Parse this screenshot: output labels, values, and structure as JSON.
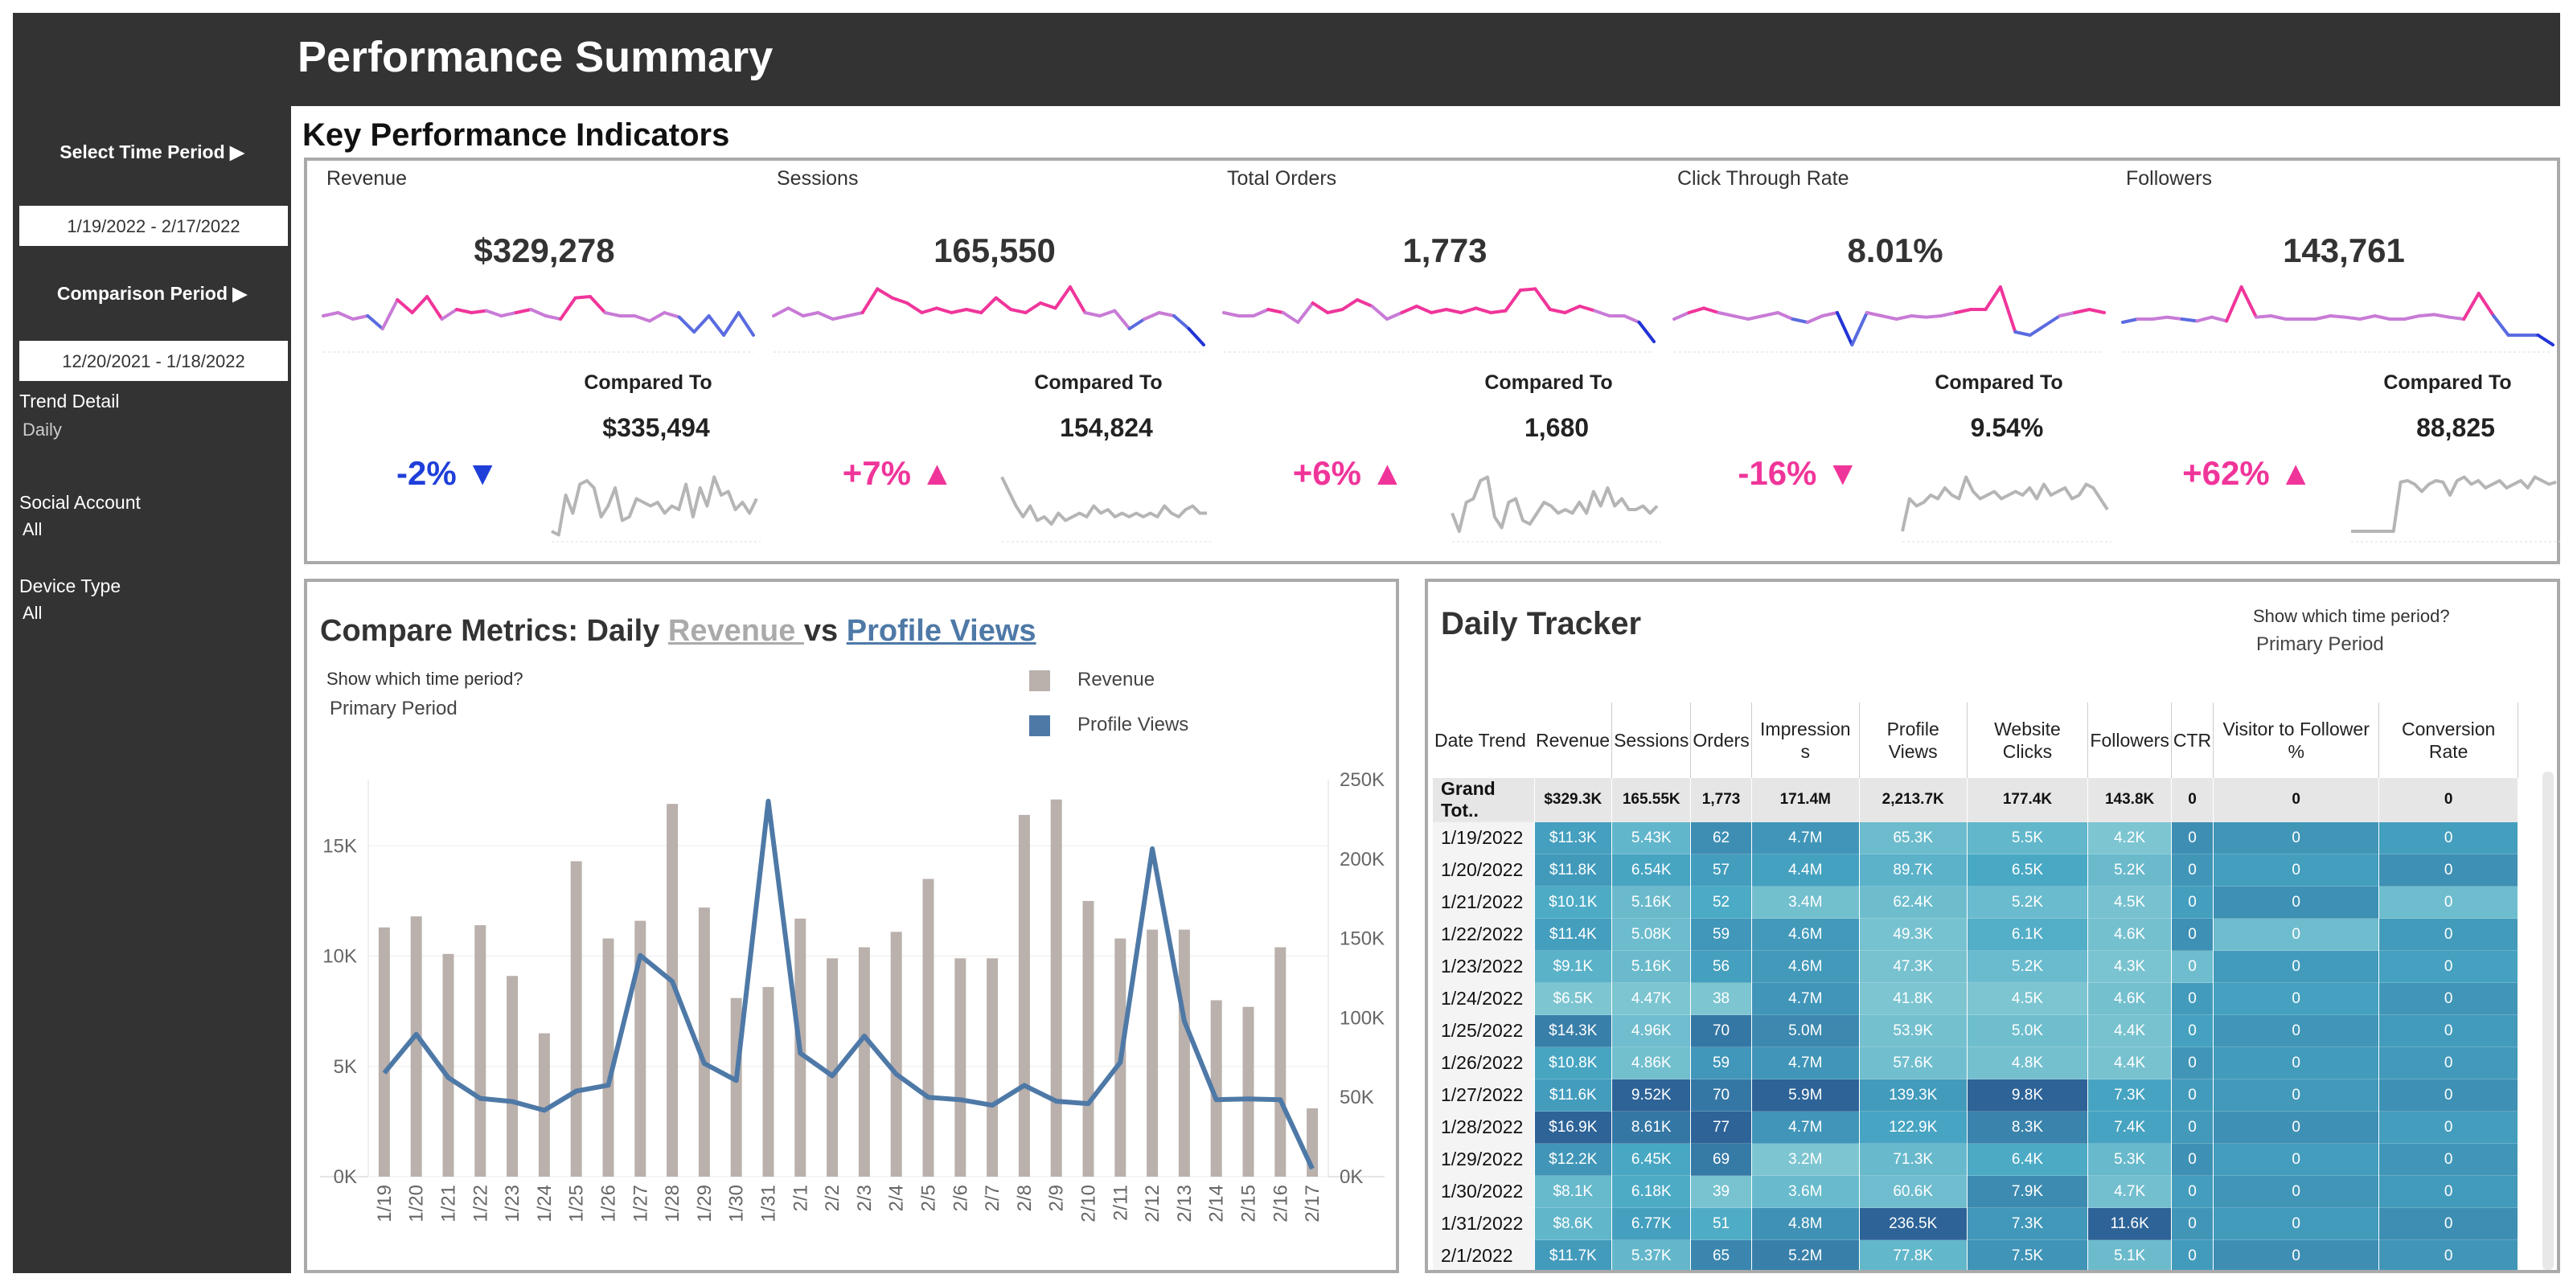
{
  "header": {
    "title": "Performance Summary"
  },
  "sidebar": {
    "time_period_btn": "Select Time Period ▶",
    "time_period_value": "1/19/2022 - 2/17/2022",
    "comparison_btn": "Comparison Period ▶",
    "comparison_value": "12/20/2021 - 1/18/2022",
    "trend_label": "Trend Detail",
    "trend_value": "Daily",
    "social_label": "Social Account",
    "social_value": "All",
    "device_label": "Device Type",
    "device_value": "All"
  },
  "kpi_section": {
    "heading": "Key Performance Indicators",
    "compared_to": "Compared To",
    "items": [
      {
        "title": "Revenue",
        "value": "$329,278",
        "compare_value": "$335,494",
        "change": "-2%",
        "direction": "down",
        "color": "#1f3fd9"
      },
      {
        "title": "Sessions",
        "value": "165,550",
        "compare_value": "154,824",
        "change": "+7%",
        "direction": "up",
        "color": "#f0359a"
      },
      {
        "title": "Total Orders",
        "value": "1,773",
        "compare_value": "1,680",
        "change": "+6%",
        "direction": "up",
        "color": "#f0359a"
      },
      {
        "title": "Click Through Rate",
        "value": "8.01%",
        "compare_value": "9.54%",
        "change": "-16%",
        "direction": "down",
        "color": "#f0359a"
      },
      {
        "title": "Followers",
        "value": "143,761",
        "compare_value": "88,825",
        "change": "+62%",
        "direction": "up",
        "color": "#f0359a"
      }
    ]
  },
  "compare_metrics": {
    "title_prefix": "Compare Metrics: Daily ",
    "title_revenue": "Revenue ",
    "title_vs": "vs ",
    "title_pv": "Profile Views",
    "period_label": "Show which time period?",
    "period_value": "Primary Period",
    "legend": [
      {
        "label": "Revenue",
        "color": "#bab0ac"
      },
      {
        "label": "Profile Views",
        "color": "#4e79a7"
      }
    ]
  },
  "chart_data": {
    "type": "bar",
    "categories": [
      "1/19",
      "1/20",
      "1/21",
      "1/22",
      "1/23",
      "1/24",
      "1/25",
      "1/26",
      "1/27",
      "1/28",
      "1/29",
      "1/30",
      "1/31",
      "2/1",
      "2/2",
      "2/3",
      "2/4",
      "2/5",
      "2/6",
      "2/7",
      "2/8",
      "2/9",
      "2/10",
      "2/11",
      "2/12",
      "2/13",
      "2/14",
      "2/15",
      "2/16",
      "2/17"
    ],
    "series": [
      {
        "name": "Revenue",
        "type": "bar",
        "axis": "left",
        "values": [
          11300,
          11800,
          10100,
          11400,
          9100,
          6500,
          14300,
          10800,
          11600,
          16900,
          12200,
          8100,
          8600,
          11700,
          9900,
          10400,
          11100,
          13500,
          9900,
          9900,
          16400,
          17100,
          12500,
          10800,
          11200,
          11200,
          8000,
          7700,
          10400,
          3100
        ]
      },
      {
        "name": "Profile Views",
        "type": "line",
        "axis": "right",
        "values": [
          65300,
          89700,
          62400,
          49300,
          47300,
          41800,
          53900,
          57600,
          139300,
          122900,
          71300,
          60600,
          236500,
          77800,
          63500,
          88500,
          64500,
          50000,
          48500,
          45000,
          57500,
          47500,
          46000,
          72000,
          206500,
          98000,
          48500,
          49000,
          48500,
          5000
        ]
      }
    ],
    "y_left": {
      "ticks": [
        "0K",
        "5K",
        "10K",
        "15K"
      ],
      "range": [
        0,
        18000
      ]
    },
    "y_right": {
      "ticks": [
        "0K",
        "50K",
        "100K",
        "150K",
        "200K",
        "250K"
      ],
      "range": [
        0,
        250000
      ]
    },
    "grid": true
  },
  "daily_tracker": {
    "title": "Daily Tracker",
    "period_label": "Show which time period?",
    "period_value": "Primary Period",
    "columns": [
      "Date Trend",
      "Revenue",
      "Sessions",
      "Orders",
      "Impression s",
      "Profile Views",
      "Website Clicks",
      "Followers",
      "CTR",
      "Visitor to Follower %",
      "Conversion Rate"
    ],
    "total": [
      "Grand Tot..",
      "$329.3K",
      "165.55K",
      "1,773",
      "171.4M",
      "2,213.7K",
      "177.4K",
      "143.8K",
      "0",
      "0",
      "0"
    ],
    "rows": [
      [
        "1/19/2022",
        "$11.3K",
        "5.43K",
        "62",
        "4.7M",
        "65.3K",
        "5.5K",
        "4.2K",
        "0",
        "0",
        "0"
      ],
      [
        "1/20/2022",
        "$11.8K",
        "6.54K",
        "57",
        "4.4M",
        "89.7K",
        "6.5K",
        "5.2K",
        "0",
        "0",
        "0"
      ],
      [
        "1/21/2022",
        "$10.1K",
        "5.16K",
        "52",
        "3.4M",
        "62.4K",
        "5.2K",
        "4.5K",
        "0",
        "0",
        "0"
      ],
      [
        "1/22/2022",
        "$11.4K",
        "5.08K",
        "59",
        "4.6M",
        "49.3K",
        "6.1K",
        "4.6K",
        "0",
        "0",
        "0"
      ],
      [
        "1/23/2022",
        "$9.1K",
        "5.16K",
        "56",
        "4.6M",
        "47.3K",
        "5.2K",
        "4.3K",
        "0",
        "0",
        "0"
      ],
      [
        "1/24/2022",
        "$6.5K",
        "4.47K",
        "38",
        "4.7M",
        "41.8K",
        "4.5K",
        "4.6K",
        "0",
        "0",
        "0"
      ],
      [
        "1/25/2022",
        "$14.3K",
        "4.96K",
        "70",
        "5.0M",
        "53.9K",
        "5.0K",
        "4.4K",
        "0",
        "0",
        "0"
      ],
      [
        "1/26/2022",
        "$10.8K",
        "4.86K",
        "59",
        "4.7M",
        "57.6K",
        "4.8K",
        "4.4K",
        "0",
        "0",
        "0"
      ],
      [
        "1/27/2022",
        "$11.6K",
        "9.52K",
        "70",
        "5.9M",
        "139.3K",
        "9.8K",
        "7.3K",
        "0",
        "0",
        "0"
      ],
      [
        "1/28/2022",
        "$16.9K",
        "8.61K",
        "77",
        "4.7M",
        "122.9K",
        "8.3K",
        "7.4K",
        "0",
        "0",
        "0"
      ],
      [
        "1/29/2022",
        "$12.2K",
        "6.45K",
        "69",
        "3.2M",
        "71.3K",
        "6.4K",
        "5.3K",
        "0",
        "0",
        "0"
      ],
      [
        "1/30/2022",
        "$8.1K",
        "6.18K",
        "39",
        "3.6M",
        "60.6K",
        "7.9K",
        "4.7K",
        "0",
        "0",
        "0"
      ],
      [
        "1/31/2022",
        "$8.6K",
        "6.77K",
        "51",
        "4.8M",
        "236.5K",
        "7.3K",
        "11.6K",
        "0",
        "0",
        "0"
      ],
      [
        "2/1/2022",
        "$11.7K",
        "5.37K",
        "65",
        "5.2M",
        "77.8K",
        "7.5K",
        "5.1K",
        "0",
        "0",
        "0"
      ]
    ]
  }
}
